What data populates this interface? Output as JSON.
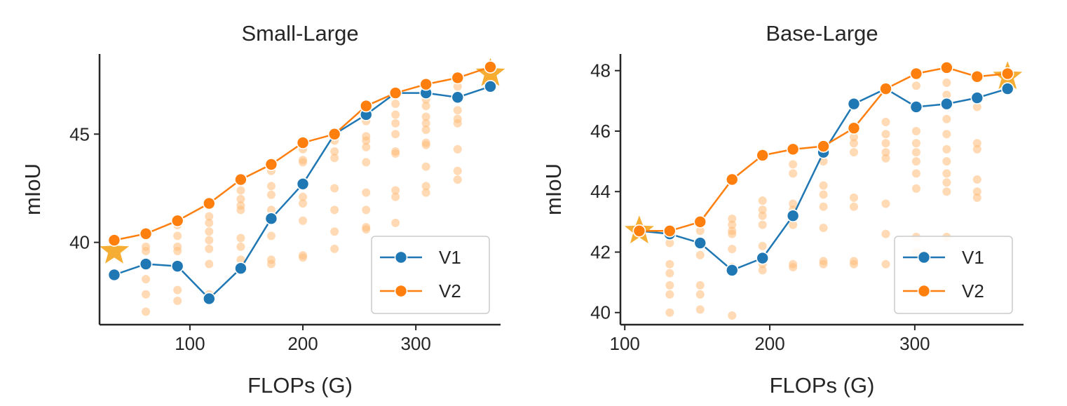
{
  "colors": {
    "v1": "#1f77b4",
    "v2": "#ff7f0e",
    "star": "#f5a623",
    "scatter": "#ffbb78",
    "axis": "#262626"
  },
  "chart_data": [
    {
      "type": "line",
      "title": "Small-Large",
      "xlabel": "FLOPs (G)",
      "ylabel": "mIoU",
      "xlim": [
        20,
        375
      ],
      "ylim": [
        36.2,
        48.7
      ],
      "xticks": [
        100,
        200,
        300
      ],
      "yticks": [
        40,
        45
      ],
      "grid": false,
      "legend_position": "lower-right",
      "series": [
        {
          "name": "V1",
          "x": [
            33,
            61,
            89,
            117,
            145,
            172,
            200,
            228,
            256,
            282,
            309,
            337,
            366
          ],
          "y": [
            38.5,
            39.0,
            38.9,
            37.4,
            38.8,
            41.1,
            42.7,
            45.0,
            45.9,
            46.9,
            46.9,
            46.7,
            47.2
          ]
        },
        {
          "name": "V2",
          "x": [
            33,
            61,
            89,
            117,
            145,
            172,
            200,
            228,
            256,
            282,
            309,
            337,
            366
          ],
          "y": [
            40.1,
            40.4,
            41.0,
            41.8,
            42.9,
            43.6,
            44.6,
            45.0,
            46.3,
            46.9,
            47.3,
            47.6,
            48.1
          ]
        }
      ],
      "stars": [
        {
          "x": 33,
          "y": 39.6
        },
        {
          "x": 366,
          "y": 47.8
        }
      ],
      "scatter_candidates": [
        {
          "x": 61,
          "y": [
            39.8,
            39.6,
            38.3,
            37.6,
            36.8
          ]
        },
        {
          "x": 89,
          "y": [
            40.8,
            40.3,
            39.8,
            39.6,
            37.8,
            37.3
          ]
        },
        {
          "x": 117,
          "y": [
            41.2,
            40.9,
            40.5,
            40.1,
            39.7,
            39.0,
            37.6
          ]
        },
        {
          "x": 145,
          "y": [
            42.4,
            42.0,
            41.7,
            41.5,
            40.2,
            39.8,
            39.2
          ]
        },
        {
          "x": 172,
          "y": [
            43.3,
            42.6,
            42.2,
            41.5,
            40.3,
            39.2,
            39.0
          ]
        },
        {
          "x": 200,
          "y": [
            44.3,
            43.8,
            43.7,
            42.1,
            41.8,
            41.0,
            39.4,
            39.3
          ]
        },
        {
          "x": 228,
          "y": [
            44.7,
            44.2,
            43.9,
            42.5,
            41.5,
            40.5,
            39.7
          ]
        },
        {
          "x": 256,
          "y": [
            45.6,
            44.9,
            44.7,
            44.4,
            43.7,
            42.3,
            41.5,
            40.7,
            40.6
          ]
        },
        {
          "x": 282,
          "y": [
            46.4,
            45.9,
            45.5,
            45.0,
            44.2,
            44.1,
            42.4,
            42.1,
            40.9
          ]
        },
        {
          "x": 309,
          "y": [
            46.6,
            46.3,
            45.8,
            45.5,
            45.2,
            44.6,
            44.5,
            43.5,
            42.6,
            42.3
          ]
        },
        {
          "x": 337,
          "y": [
            47.2,
            46.8,
            46.1,
            45.7,
            45.5,
            44.3,
            43.3,
            42.9
          ]
        },
        {
          "x": 366,
          "y": [
            47.9,
            47.5
          ]
        }
      ]
    },
    {
      "type": "line",
      "title": "Base-Large",
      "xlabel": "FLOPs (G)",
      "ylabel": "mIoU",
      "xlim": [
        97,
        375
      ],
      "ylim": [
        39.6,
        48.55
      ],
      "xticks": [
        100,
        200,
        300
      ],
      "yticks": [
        40,
        42,
        44,
        46,
        48
      ],
      "grid": false,
      "legend_position": "lower-right",
      "series": [
        {
          "name": "V1",
          "x": [
            110,
            131,
            152,
            174,
            195,
            216,
            237,
            258,
            280,
            301,
            322,
            343,
            364
          ],
          "y": [
            42.7,
            42.6,
            42.3,
            41.4,
            41.8,
            43.2,
            45.3,
            46.9,
            47.4,
            46.8,
            46.9,
            47.1,
            47.4
          ]
        },
        {
          "name": "V2",
          "x": [
            110,
            131,
            152,
            174,
            195,
            216,
            237,
            258,
            280,
            301,
            322,
            343,
            364
          ],
          "y": [
            42.7,
            42.7,
            43.0,
            44.4,
            45.2,
            45.4,
            45.5,
            46.1,
            47.4,
            47.9,
            48.1,
            47.8,
            47.9
          ]
        }
      ],
      "stars": [
        {
          "x": 110,
          "y": 42.7
        },
        {
          "x": 364,
          "y": 47.8
        }
      ],
      "scatter_candidates": [
        {
          "x": 131,
          "y": [
            42.3,
            41.6,
            41.3,
            40.9,
            40.6,
            40.0
          ]
        },
        {
          "x": 152,
          "y": [
            42.7,
            42.3,
            41.9,
            40.9,
            40.6,
            40.1
          ]
        },
        {
          "x": 174,
          "y": [
            43.1,
            42.9,
            42.7,
            42.6,
            42.1,
            41.5,
            39.9
          ]
        },
        {
          "x": 195,
          "y": [
            43.7,
            43.4,
            43.2,
            42.9,
            42.2,
            41.6,
            41.4
          ]
        },
        {
          "x": 216,
          "y": [
            44.9,
            44.6,
            43.6,
            43.4,
            42.9,
            41.6,
            41.5
          ]
        },
        {
          "x": 237,
          "y": [
            45.0,
            44.2,
            43.9,
            43.5,
            42.8,
            41.7,
            41.6
          ]
        },
        {
          "x": 258,
          "y": [
            45.8,
            45.6,
            45.3,
            43.8,
            43.5,
            41.7,
            41.6
          ]
        },
        {
          "x": 280,
          "y": [
            46.3,
            45.9,
            45.6,
            45.3,
            45.1,
            43.6,
            42.6,
            41.6
          ]
        },
        {
          "x": 301,
          "y": [
            47.5,
            46.0,
            45.6,
            45.3,
            45.0,
            44.6,
            44.1,
            42.5,
            42.0
          ]
        },
        {
          "x": 322,
          "y": [
            47.6,
            47.2,
            46.4,
            45.9,
            45.4,
            45.0,
            44.6,
            44.3,
            44.0,
            42.5
          ]
        },
        {
          "x": 343,
          "y": [
            46.8,
            45.6,
            45.4,
            44.4,
            44.0,
            43.8
          ]
        }
      ]
    }
  ]
}
